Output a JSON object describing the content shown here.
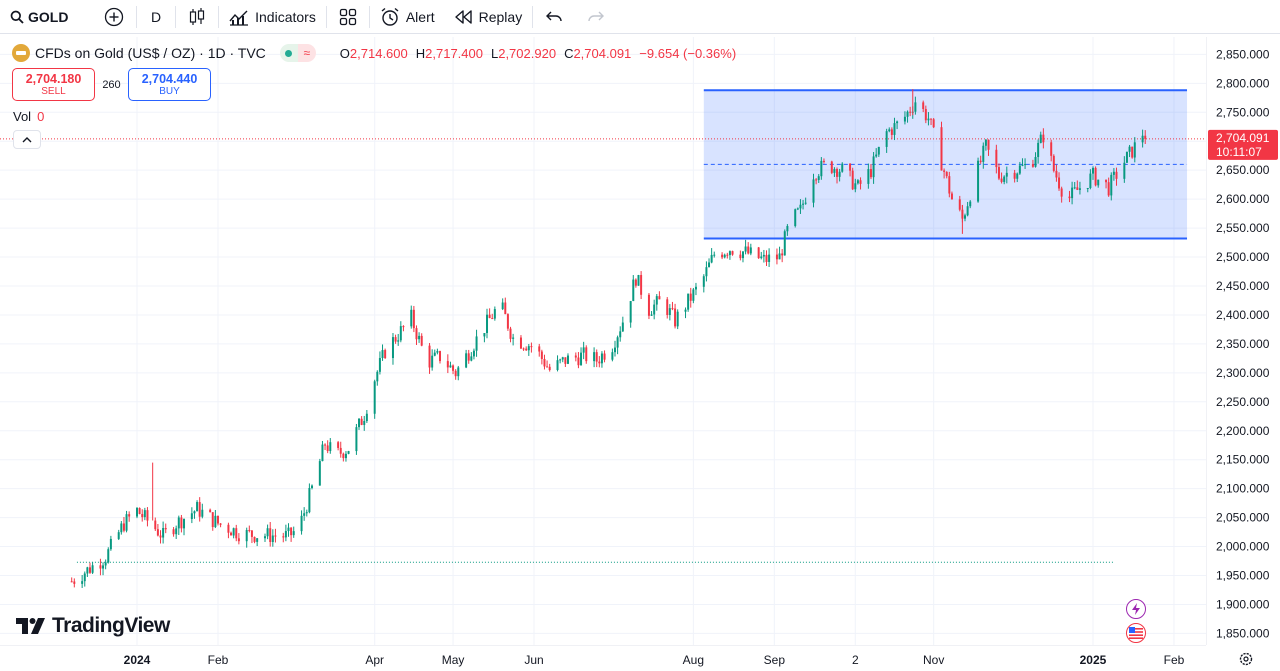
{
  "toolbar": {
    "symbol": "GOLD",
    "interval": "D",
    "indicators_label": "Indicators",
    "alert_label": "Alert",
    "replay_label": "Replay"
  },
  "legend": {
    "title": "CFDs on Gold (US$ / OZ) · 1D · TVC",
    "open_key": "O",
    "open": "2,714.600",
    "high_key": "H",
    "high": "2,717.400",
    "low_key": "L",
    "low": "2,702.920",
    "close_key": "C",
    "close": "2,704.091",
    "change": "−9.654 (−0.36%)"
  },
  "trade": {
    "sell_price": "2,704.180",
    "sell_label": "SELL",
    "spread": "260",
    "buy_price": "2,704.440",
    "buy_label": "BUY"
  },
  "volume": {
    "label": "Vol",
    "value": "0"
  },
  "branding": {
    "logo_text": "TradingView"
  },
  "price_axis": {
    "ticks": [
      1850,
      1900,
      1950,
      2000,
      2050,
      2100,
      2150,
      2200,
      2250,
      2300,
      2350,
      2400,
      2450,
      2500,
      2550,
      2600,
      2650,
      2700,
      2750,
      2800,
      2850
    ],
    "tick_labels": [
      "1,850.000",
      "1,900.000",
      "1,950.000",
      "2,000.000",
      "2,050.000",
      "2,100.000",
      "2,150.000",
      "2,200.000",
      "2,250.000",
      "2,300.000",
      "2,350.000",
      "2,400.000",
      "2,450.000",
      "2,500.000",
      "2,550.000",
      "2,600.000",
      "2,650.000",
      "2,700.000",
      "2,750.000",
      "2,800.000",
      "2,850.000"
    ],
    "last_price_label": "2,704.091",
    "countdown_label": "10:11:07"
  },
  "time_axis": {
    "labels": [
      {
        "text": "2024",
        "bold": true,
        "day": 0
      },
      {
        "text": "Feb",
        "bold": false,
        "day": 31
      },
      {
        "text": "Apr",
        "bold": false,
        "day": 91
      },
      {
        "text": "May",
        "bold": false,
        "day": 121
      },
      {
        "text": "Jun",
        "bold": false,
        "day": 152
      },
      {
        "text": "Aug",
        "bold": false,
        "day": 213
      },
      {
        "text": "Sep",
        "bold": false,
        "day": 244
      },
      {
        "text": "2",
        "bold": false,
        "day": 275
      },
      {
        "text": "Nov",
        "bold": false,
        "day": 305
      },
      {
        "text": "2025",
        "bold": true,
        "day": 366
      },
      {
        "text": "Feb",
        "bold": false,
        "day": 397
      }
    ]
  },
  "chart_data": {
    "type": "candlestick",
    "symbol": "GOLD",
    "interval": "1D",
    "ylim": [
      1830,
      2880
    ],
    "grid": true,
    "last_price": 2704.091,
    "colors": {
      "up": "#089981",
      "down": "#f23645",
      "channel": "#2962ff",
      "channel_fill": "rgba(41,98,255,0.18)"
    },
    "x_unit": "days since 2024-01-01",
    "channel": {
      "start_day": 217,
      "end_day": 402,
      "upper": 2788,
      "lower": 2532,
      "mid": 2660
    },
    "reference_level": {
      "value": 1973,
      "start_day": -23,
      "end_day": 374,
      "color": "#089981"
    },
    "closes": [
      {
        "day": -25,
        "close": 1940
      },
      {
        "day": -12,
        "close": 1982
      },
      {
        "day": -5,
        "close": 2040
      },
      {
        "day": 0,
        "close": 2062
      },
      {
        "day": 4,
        "close": 2045
      },
      {
        "day": 10,
        "close": 2018
      },
      {
        "day": 15,
        "close": 2040
      },
      {
        "day": 23,
        "close": 2065
      },
      {
        "day": 31,
        "close": 2040
      },
      {
        "day": 40,
        "close": 2022
      },
      {
        "day": 47,
        "close": 2020
      },
      {
        "day": 58,
        "close": 2018
      },
      {
        "day": 62,
        "close": 2032
      },
      {
        "day": 67,
        "close": 2100
      },
      {
        "day": 72,
        "close": 2178
      },
      {
        "day": 76,
        "close": 2158
      },
      {
        "day": 81,
        "close": 2170
      },
      {
        "day": 87,
        "close": 2228
      },
      {
        "day": 91,
        "close": 2290
      },
      {
        "day": 95,
        "close": 2338
      },
      {
        "day": 101,
        "close": 2372
      },
      {
        "day": 105,
        "close": 2395
      },
      {
        "day": 111,
        "close": 2318
      },
      {
        "day": 116,
        "close": 2328
      },
      {
        "day": 122,
        "close": 2300
      },
      {
        "day": 131,
        "close": 2365
      },
      {
        "day": 139,
        "close": 2420
      },
      {
        "day": 144,
        "close": 2360
      },
      {
        "day": 152,
        "close": 2345
      },
      {
        "day": 158,
        "close": 2305
      },
      {
        "day": 164,
        "close": 2322
      },
      {
        "day": 171,
        "close": 2330
      },
      {
        "day": 176,
        "close": 2322
      },
      {
        "day": 182,
        "close": 2348
      },
      {
        "day": 186,
        "close": 2390
      },
      {
        "day": 191,
        "close": 2465
      },
      {
        "day": 196,
        "close": 2410
      },
      {
        "day": 201,
        "close": 2425
      },
      {
        "day": 206,
        "close": 2390
      },
      {
        "day": 212,
        "close": 2430
      },
      {
        "day": 216,
        "close": 2455
      },
      {
        "day": 221,
        "close": 2505
      },
      {
        "day": 227,
        "close": 2515
      },
      {
        "day": 233,
        "close": 2508
      },
      {
        "day": 240,
        "close": 2495
      },
      {
        "day": 246,
        "close": 2500
      },
      {
        "day": 250,
        "close": 2560
      },
      {
        "day": 254,
        "close": 2580
      },
      {
        "day": 259,
        "close": 2645
      },
      {
        "day": 264,
        "close": 2660
      },
      {
        "day": 270,
        "close": 2650
      },
      {
        "day": 276,
        "close": 2620
      },
      {
        "day": 281,
        "close": 2650
      },
      {
        "day": 287,
        "close": 2715
      },
      {
        "day": 293,
        "close": 2735
      },
      {
        "day": 298,
        "close": 2770
      },
      {
        "day": 303,
        "close": 2740
      },
      {
        "day": 307,
        "close": 2680
      },
      {
        "day": 312,
        "close": 2600
      },
      {
        "day": 316,
        "close": 2565
      },
      {
        "day": 321,
        "close": 2640
      },
      {
        "day": 325,
        "close": 2690
      },
      {
        "day": 330,
        "close": 2640
      },
      {
        "day": 336,
        "close": 2650
      },
      {
        "day": 342,
        "close": 2660
      },
      {
        "day": 347,
        "close": 2710
      },
      {
        "day": 351,
        "close": 2650
      },
      {
        "day": 356,
        "close": 2598
      },
      {
        "day": 361,
        "close": 2620
      },
      {
        "day": 366,
        "close": 2640
      },
      {
        "day": 372,
        "close": 2620
      },
      {
        "day": 378,
        "close": 2665
      },
      {
        "day": 382,
        "close": 2690
      },
      {
        "day": 385,
        "close": 2714
      },
      {
        "day": 386,
        "close": 2704.091
      }
    ],
    "spikes": [
      {
        "day": 6,
        "high": 2145,
        "low": 2045
      },
      {
        "day": 297,
        "high": 2790,
        "low": 2745
      },
      {
        "day": 316,
        "high": 2590,
        "low": 2540
      }
    ]
  }
}
